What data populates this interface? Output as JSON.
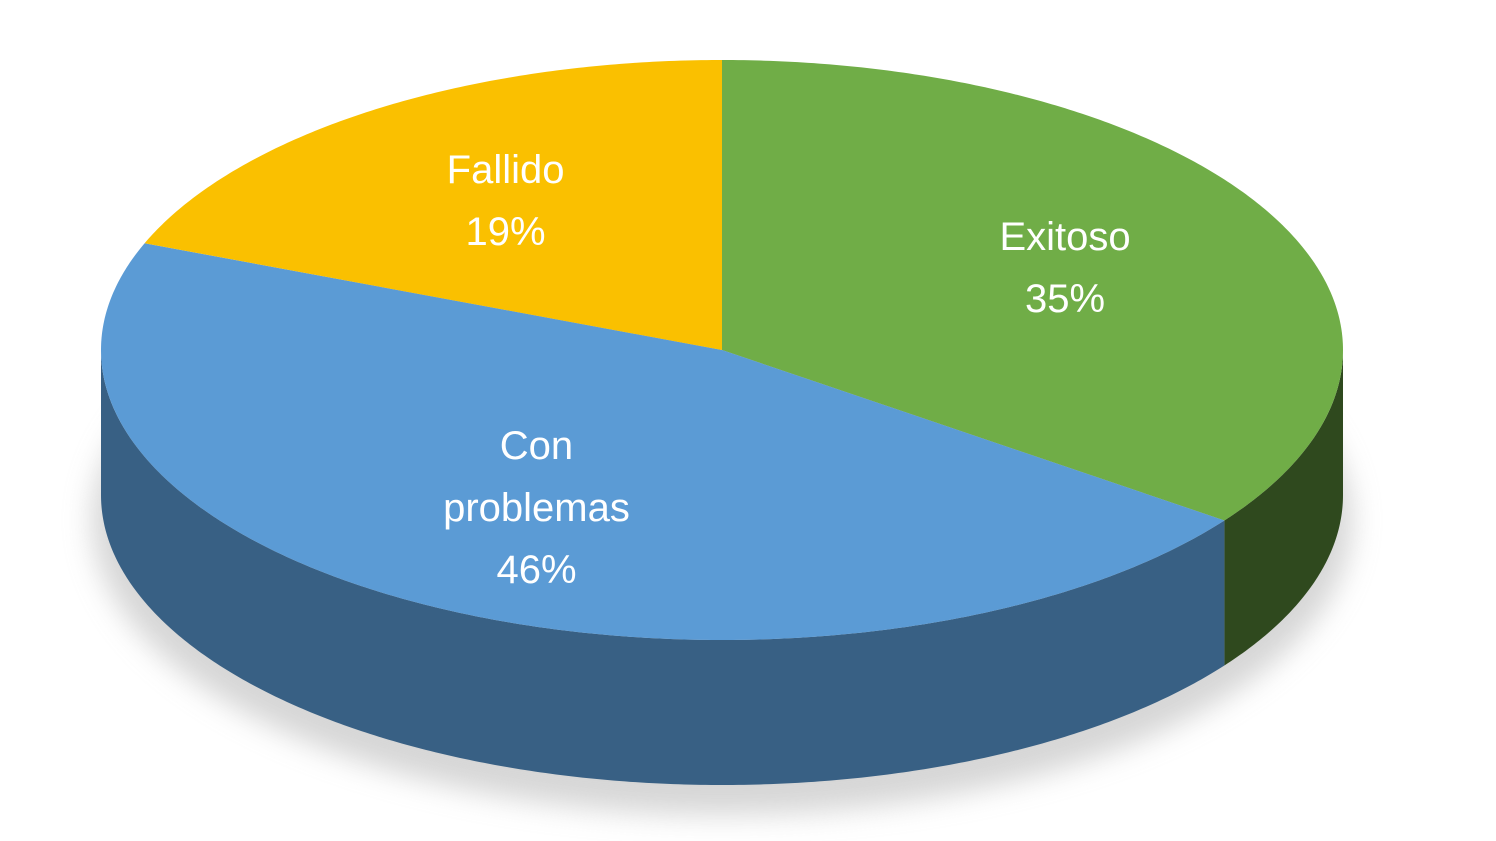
{
  "chart_data": {
    "type": "pie",
    "categories": [
      "Exitoso",
      "Con problemas",
      "Fallido"
    ],
    "values": [
      35,
      46,
      19
    ],
    "value_labels": [
      "35%",
      "46%",
      "19%"
    ],
    "colors": [
      "#70ad47",
      "#5b9bd5",
      "#fac000"
    ]
  }
}
